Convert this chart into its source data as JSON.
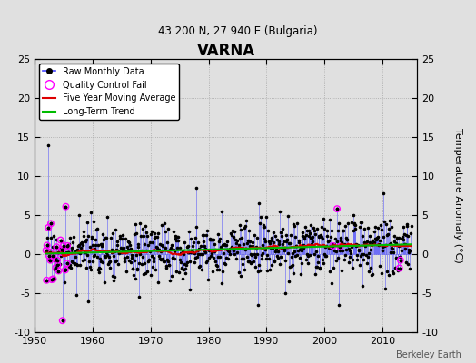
{
  "title": "VARNA",
  "subtitle": "43.200 N, 27.940 E (Bulgaria)",
  "ylabel": "Temperature Anomaly (°C)",
  "credit": "Berkeley Earth",
  "xlim": [
    1950,
    2016
  ],
  "ylim": [
    -10,
    25
  ],
  "yticks": [
    -10,
    -5,
    0,
    5,
    10,
    15,
    20,
    25
  ],
  "xticks": [
    1950,
    1960,
    1970,
    1980,
    1990,
    2000,
    2010
  ],
  "background_color": "#e0e0e0",
  "plot_bg_color": "#e0e0e0",
  "raw_line_color": "#4444ff",
  "raw_dot_color": "#000000",
  "qc_fail_color": "#ff00ff",
  "moving_avg_color": "#dd0000",
  "trend_color": "#00bb00",
  "seed": 17,
  "data_start": 1952.0,
  "data_end": 2015.0,
  "noise_std": 1.8,
  "trend_slope": 0.02
}
